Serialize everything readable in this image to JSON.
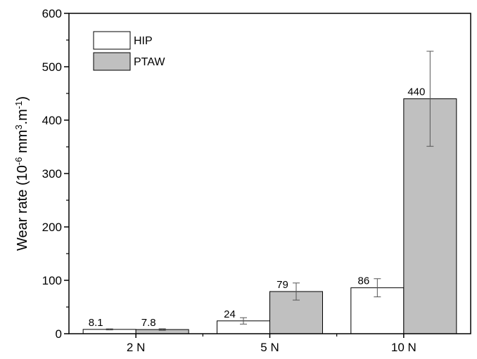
{
  "chart_data": {
    "type": "bar",
    "categories": [
      "2 N",
      "5 N",
      "10 N"
    ],
    "series": [
      {
        "name": "HIP",
        "values": [
          8.1,
          24,
          86
        ],
        "errors": [
          1,
          6,
          17
        ],
        "labels": [
          "8.1",
          "24",
          "86"
        ],
        "color": "#ffffff"
      },
      {
        "name": "PTAW",
        "values": [
          7.8,
          79,
          440
        ],
        "errors": [
          1.5,
          16,
          89
        ],
        "labels": [
          "7.8",
          "79",
          "440"
        ],
        "color": "#c0c0c0"
      }
    ],
    "title": "",
    "xlabel": "",
    "ylabel": {
      "main": "Wear rate (10",
      "exp1": "-6",
      "mid": " mm",
      "exp2": "3",
      "mid2": ".m",
      "exp3": "-1",
      "end": ")"
    },
    "ylim": [
      0,
      600
    ],
    "yticks": [
      0,
      100,
      200,
      300,
      400,
      500,
      600
    ],
    "grid": false,
    "legend_position": "top-left"
  }
}
